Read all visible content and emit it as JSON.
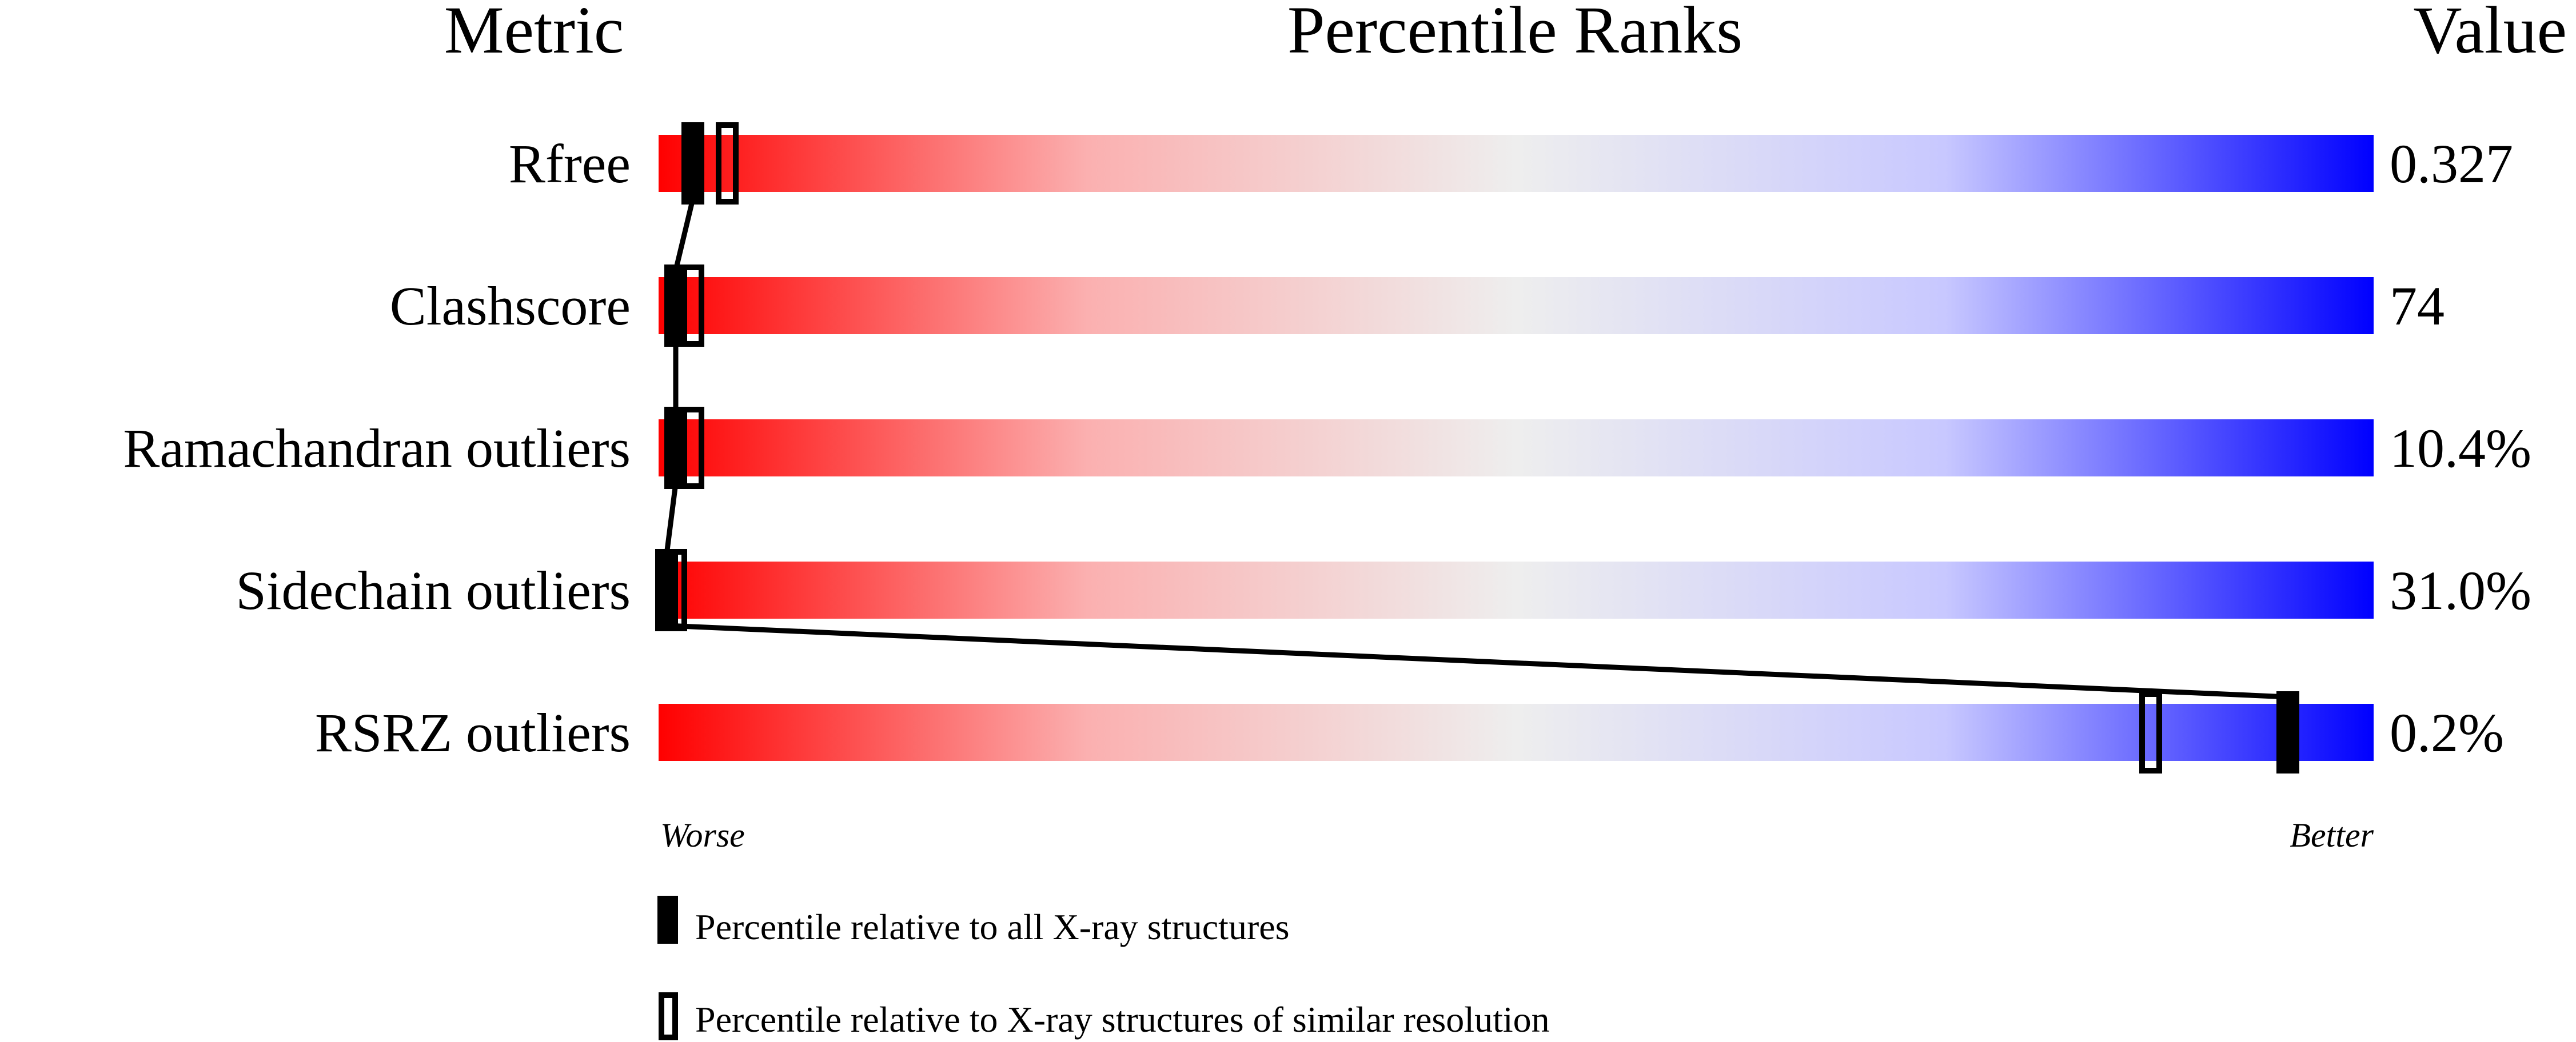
{
  "chart_data": {
    "type": "percentile-slider",
    "headers": {
      "metric": "Metric",
      "title": "Percentile Ranks",
      "value": "Value"
    },
    "xlim": [
      0,
      100
    ],
    "axis": {
      "left": "Worse",
      "right": "Better"
    },
    "gradient_colors": {
      "worse": "#ff0000",
      "middle": "#eeeeee",
      "better": "#0000ff"
    },
    "metrics": [
      {
        "name": "Rfree",
        "value": "0.327",
        "percentile_all": 2,
        "percentile_similar": 4
      },
      {
        "name": "Clashscore",
        "value": "74",
        "percentile_all": 1,
        "percentile_similar": 2
      },
      {
        "name": "Ramachandran outliers",
        "value": "10.4%",
        "percentile_all": 1,
        "percentile_similar": 2
      },
      {
        "name": "Sidechain outliers",
        "value": "31.0%",
        "percentile_all": 0,
        "percentile_similar": 1
      },
      {
        "name": "RSRZ outliers",
        "value": "0.2%",
        "percentile_all": 95,
        "percentile_similar": 87
      }
    ],
    "legend": [
      {
        "marker": "filled",
        "label": "Percentile relative to all X-ray structures"
      },
      {
        "marker": "hollow",
        "label": "Percentile relative to X-ray structures of similar resolution"
      }
    ]
  }
}
